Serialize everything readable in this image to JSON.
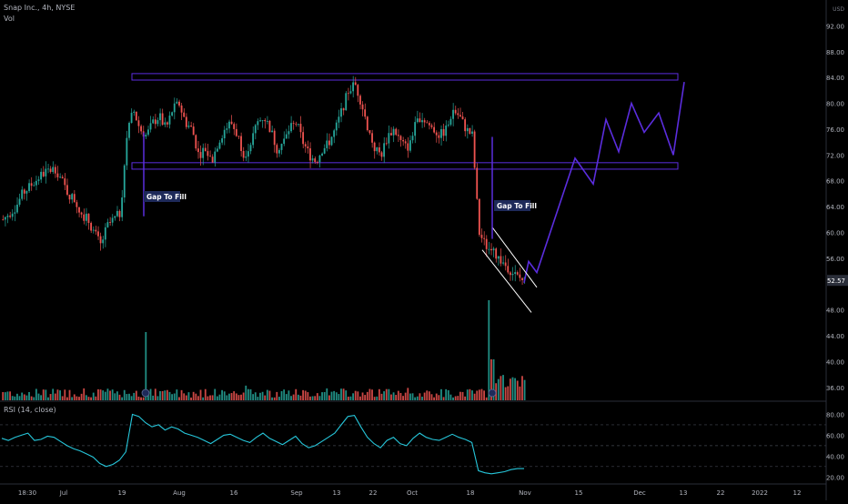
{
  "header": {
    "title": "Snap Inc., 4h, NYSE",
    "volume_label": "Vol",
    "rsi_label": "RSI (14, close)"
  },
  "price_axis": {
    "currency_label": "USD",
    "ticks": [
      "92.00",
      "88.00",
      "84.00",
      "80.00",
      "76.00",
      "72.00",
      "68.00",
      "64.00",
      "60.00",
      "56.00",
      "48.00",
      "44.00",
      "40.00",
      "36.00"
    ]
  },
  "last_price": "52.57",
  "rsi_axis": {
    "ticks": [
      "80.00",
      "60.00",
      "40.00",
      "20.00"
    ]
  },
  "x_axis": {
    "ticks": [
      "18:30",
      "Jul",
      "19",
      "Aug",
      "16",
      "Sep",
      "13",
      "22",
      "Oct",
      "18",
      "Nov",
      "15",
      "Dec",
      "13",
      "22",
      "2022",
      "12"
    ]
  },
  "annotations": {
    "gap1": "Gap To Fill",
    "gap2": "Gap To Fill"
  },
  "colors": {
    "up": "#26a69a",
    "down": "#ef5350",
    "projection": "#5b2dde",
    "rsi": "#26c6da",
    "box": "#5b2dde",
    "vol_up": "#26a69a",
    "vol_down": "#ef5350",
    "background": "#000000",
    "label_bg": "#1e2a5a"
  },
  "chart_data": {
    "type": "line",
    "price_range": [
      34,
      96
    ],
    "rsi_range": [
      15,
      90
    ],
    "resistance_zone": [
      83.6,
      84.6
    ],
    "support_zone": [
      69.8,
      70.8
    ],
    "price_path": [
      62,
      63,
      64,
      66,
      67,
      68,
      69,
      69.5,
      70,
      68,
      66,
      65,
      63,
      62,
      60,
      58,
      61,
      62,
      63,
      75,
      79,
      76,
      75,
      77,
      78,
      76,
      79,
      80,
      77,
      76,
      72,
      73,
      71,
      74,
      76,
      77,
      75,
      72,
      74,
      77,
      78,
      76,
      73,
      74,
      76,
      77,
      74,
      72,
      71,
      73,
      74,
      76,
      79,
      82,
      83,
      80,
      76,
      73,
      72,
      75,
      76,
      74,
      73,
      76,
      78,
      77,
      76,
      75,
      76,
      79,
      78,
      76,
      75,
      60,
      58,
      57,
      56,
      55,
      54,
      53,
      52.57
    ],
    "projection": [
      {
        "x": 0,
        "y": 52.2
      },
      {
        "x": 1,
        "y": 55.5
      },
      {
        "x": 2,
        "y": 53.8
      },
      {
        "x": 3,
        "y": 71.5
      },
      {
        "x": 4,
        "y": 67.5
      },
      {
        "x": 5,
        "y": 77.5
      },
      {
        "x": 6,
        "y": 72.5
      },
      {
        "x": 7,
        "y": 80.0
      },
      {
        "x": 8,
        "y": 75.5
      },
      {
        "x": 9,
        "y": 78.5
      },
      {
        "x": 10,
        "y": 72.0
      },
      {
        "x": 11,
        "y": 83.3
      }
    ],
    "rsi_values": [
      57,
      55,
      58,
      60,
      62,
      55,
      56,
      59,
      58,
      54,
      50,
      47,
      45,
      42,
      39,
      33,
      30,
      32,
      36,
      44,
      80,
      78,
      72,
      68,
      70,
      65,
      68,
      66,
      62,
      60,
      58,
      55,
      52,
      56,
      60,
      61,
      58,
      55,
      53,
      58,
      62,
      57,
      54,
      51,
      55,
      59,
      52,
      48,
      50,
      54,
      58,
      62,
      70,
      78,
      79,
      68,
      58,
      52,
      48,
      55,
      58,
      52,
      50,
      57,
      62,
      58,
      56,
      55,
      58,
      61,
      58,
      56,
      53,
      26,
      24,
      23,
      24,
      25,
      27,
      28,
      28
    ]
  }
}
